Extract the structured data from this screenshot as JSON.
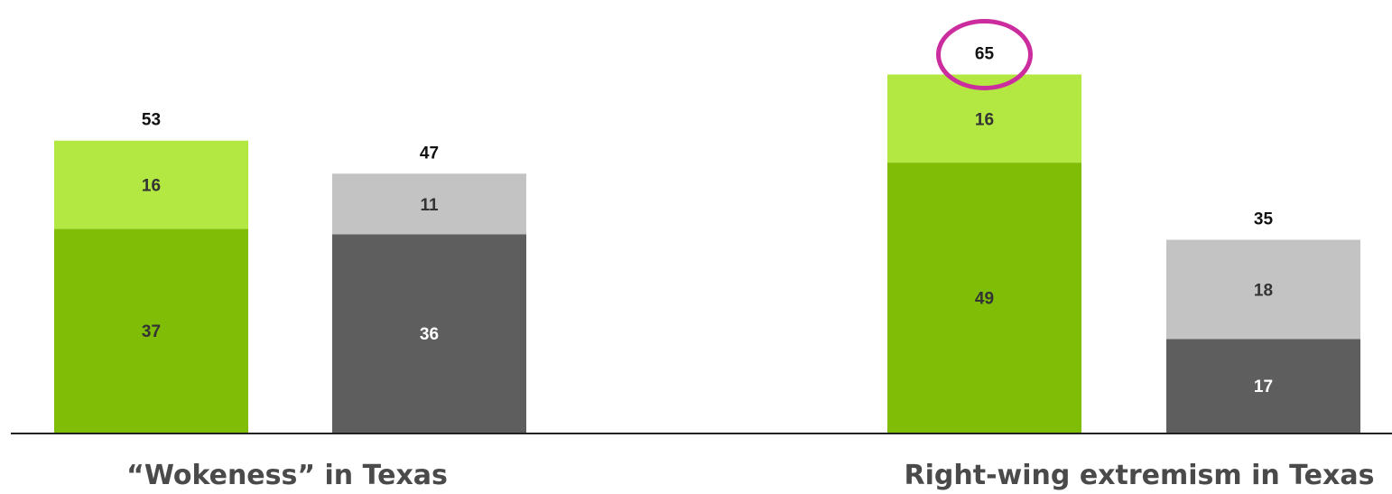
{
  "colors": {
    "green_dark": "#7fbd07",
    "green_light": "#b3e843",
    "gray_dark": "#5e5e5e",
    "gray_light": "#c3c3c3",
    "highlight": "#cc2d9e",
    "axis": "#222222"
  },
  "chart_data": {
    "type": "bar",
    "stacked": true,
    "title": "",
    "xlabel": "",
    "ylabel": "",
    "ylim": [
      0,
      70
    ],
    "grid": false,
    "groups": [
      {
        "label": "“Wokeness” in Texas",
        "bars": [
          {
            "total": 53,
            "segments": [
              {
                "value": 37,
                "color": "#7fbd07",
                "label_color": "#333333"
              },
              {
                "value": 16,
                "color": "#b3e843",
                "label_color": "#333333"
              }
            ]
          },
          {
            "total": 47,
            "segments": [
              {
                "value": 36,
                "color": "#5e5e5e",
                "label_color": "#ffffff"
              },
              {
                "value": 11,
                "color": "#c3c3c3",
                "label_color": "#333333"
              }
            ]
          }
        ]
      },
      {
        "label": "Right-wing extremism in Texas",
        "bars": [
          {
            "total": 65,
            "highlighted": true,
            "segments": [
              {
                "value": 49,
                "color": "#7fbd07",
                "label_color": "#333333"
              },
              {
                "value": 16,
                "color": "#b3e843",
                "label_color": "#333333"
              }
            ]
          },
          {
            "total": 35,
            "segments": [
              {
                "value": 17,
                "color": "#5e5e5e",
                "label_color": "#ffffff"
              },
              {
                "value": 18,
                "color": "#c3c3c3",
                "label_color": "#333333"
              }
            ]
          }
        ]
      }
    ]
  }
}
